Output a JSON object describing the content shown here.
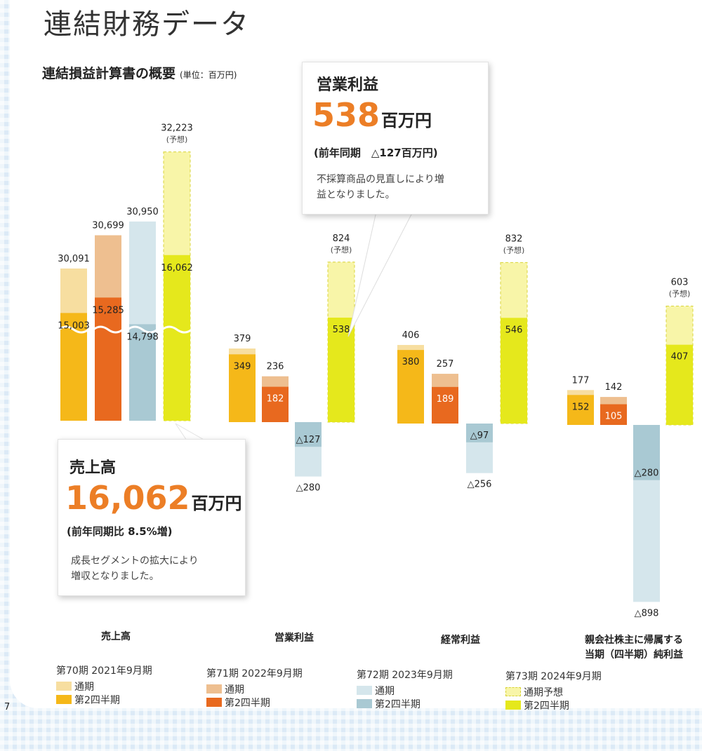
{
  "page_title": "連結財務データ",
  "subtitle": "連結損益計算書の概要",
  "unit": "(単位：百万円)",
  "forecast_tag": "(予想)",
  "colors": {
    "p70_full": "#f7dea0",
    "p70_q2": "#f5b819",
    "p71_full": "#eebf90",
    "p71_q2": "#e8691f",
    "p72_full": "#d5e6ec",
    "p72_q2": "#a9c9d3",
    "p73_full": "#f8f5a8",
    "p73_q2": "#e5e81c",
    "p73_dash": "#d8d43a"
  },
  "chart_data": {
    "type": "bar",
    "categories": [
      "売上高",
      "営業利益",
      "経常利益",
      "親会社株主に帰属する当期（四半期）純利益"
    ],
    "category_lines": [
      [
        "売上高"
      ],
      [
        "営業利益"
      ],
      [
        "経常利益"
      ],
      [
        "親会社株主に帰属する",
        "当期（四半期）純利益"
      ]
    ],
    "series": [
      {
        "name": "第70期 2021年9月期",
        "full_label": "通期",
        "q2_label": "第2四半期",
        "full": [
          30091,
          379,
          406,
          177
        ],
        "q2": [
          15003,
          349,
          380,
          152
        ],
        "full_text": [
          "30,091",
          "379",
          "406",
          "177"
        ],
        "q2_text": [
          "15,003",
          "349",
          "380",
          "152"
        ]
      },
      {
        "name": "第71期 2022年9月期",
        "full_label": "通期",
        "q2_label": "第2四半期",
        "full": [
          30699,
          236,
          257,
          142
        ],
        "q2": [
          15285,
          182,
          189,
          105
        ],
        "full_text": [
          "30,699",
          "236",
          "257",
          "142"
        ],
        "q2_text": [
          "15,285",
          "182",
          "189",
          "105"
        ]
      },
      {
        "name": "第72期 2023年9月期",
        "full_label": "通期",
        "q2_label": "第2四半期",
        "full": [
          30950,
          -280,
          -256,
          -898
        ],
        "q2": [
          14798,
          -127,
          -97,
          -280
        ],
        "full_text": [
          "30,950",
          "△280",
          "△256",
          "△898"
        ],
        "q2_text": [
          "14,798",
          "△127",
          "△97",
          "△280"
        ]
      },
      {
        "name": "第73期 2024年9月期",
        "full_label": "通期予想",
        "q2_label": "第2四半期",
        "full": [
          32223,
          824,
          832,
          603
        ],
        "q2": [
          16062,
          538,
          546,
          407
        ],
        "full_text": [
          "32,223",
          "824",
          "832",
          "603"
        ],
        "q2_text": [
          "16,062",
          "538",
          "546",
          "407"
        ],
        "forecast": true
      }
    ]
  },
  "callout_op": {
    "title": "営業利益",
    "value": "538",
    "unit": "百万円",
    "yoy": "(前年同期　△127百万円)",
    "note_lines": [
      "不採算商品の見直しにより増",
      "益となりました。"
    ]
  },
  "callout_sales": {
    "title": "売上高",
    "value": "16,062",
    "unit": "百万円",
    "yoy": "(前年同期比 8.5%増)",
    "note_lines": [
      "成長セグメントの拡大により",
      "増収となりました。"
    ]
  },
  "page_number": "7"
}
